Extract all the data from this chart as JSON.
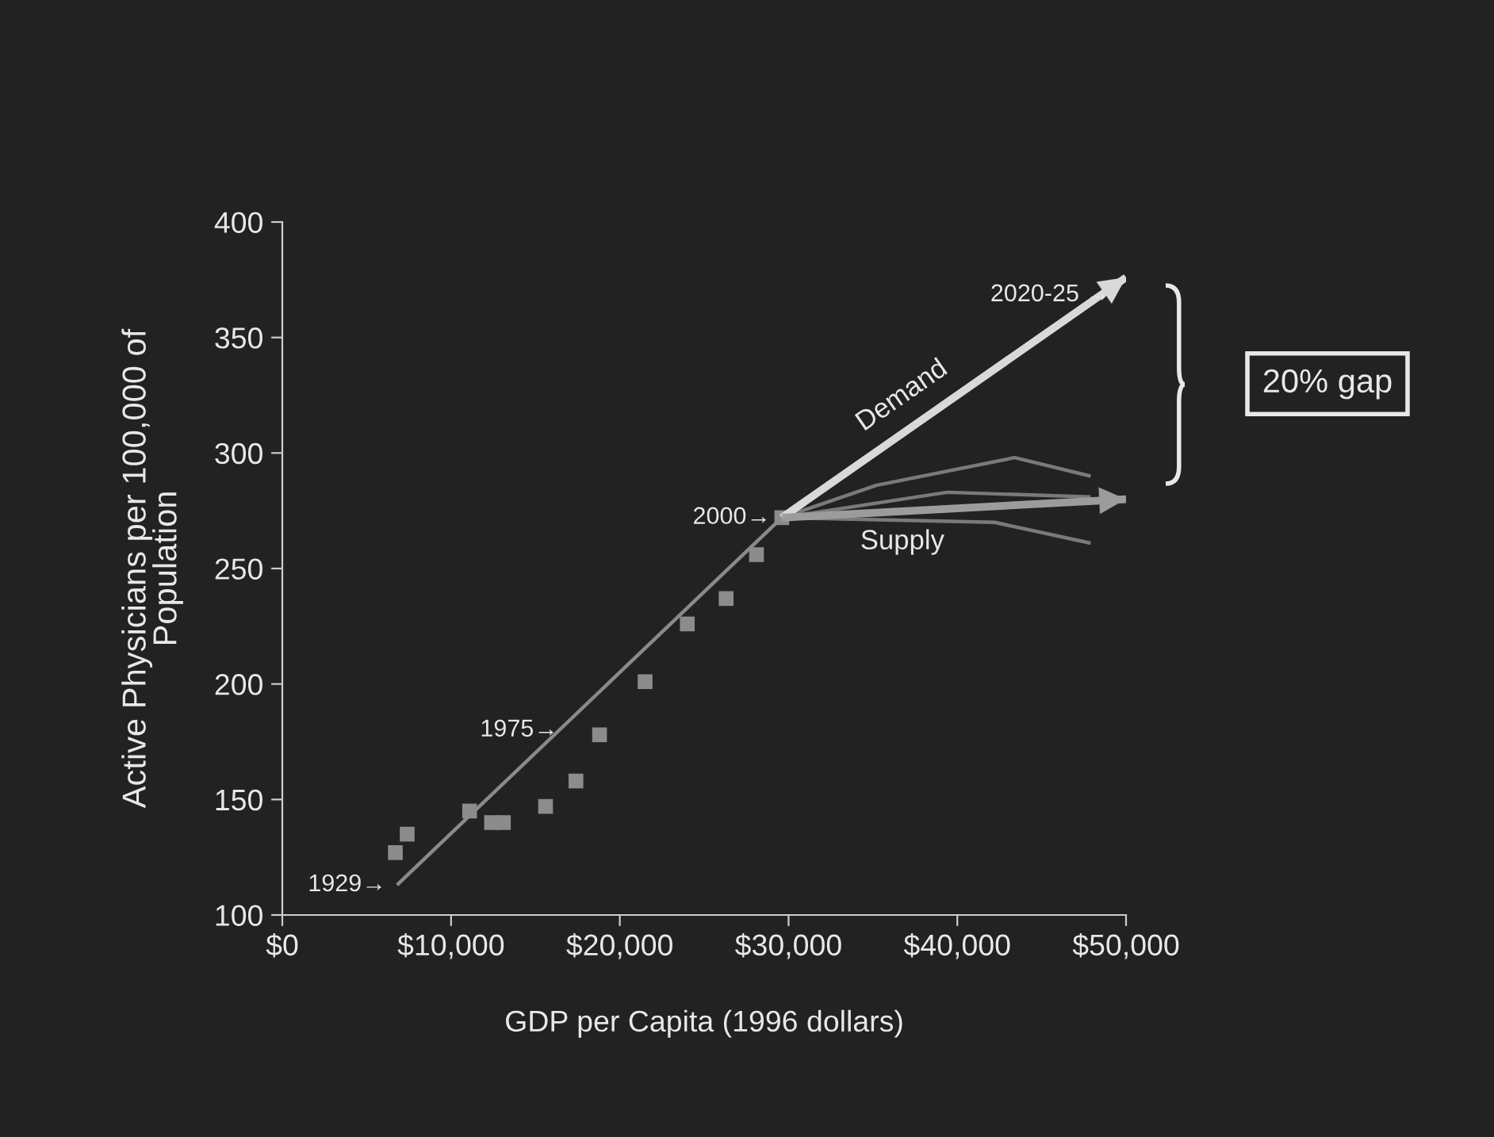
{
  "chart_data": {
    "type": "scatter",
    "xlabel": "GDP per Capita (1996 dollars)",
    "ylabel": "Active Physicians per 100,000 of\nPopulation",
    "xlim": [
      0,
      50000
    ],
    "ylim": [
      100,
      400
    ],
    "xticks": [
      {
        "value": 0,
        "label": "$0"
      },
      {
        "value": 10000,
        "label": "$10,000"
      },
      {
        "value": 20000,
        "label": "$20,000"
      },
      {
        "value": 30000,
        "label": "$30,000"
      },
      {
        "value": 40000,
        "label": "$40,000"
      },
      {
        "value": 50000,
        "label": "$50,000"
      }
    ],
    "yticks": [
      100,
      150,
      200,
      250,
      300,
      350,
      400
    ],
    "grid": false,
    "legend": false,
    "series": [
      {
        "marker": "square",
        "color": "#8c8c8c",
        "x": [
          6700,
          7400,
          11100,
          12400,
          13100,
          15600,
          17400,
          18800,
          21500,
          24000,
          26300,
          28100,
          29600
        ],
        "values": [
          127,
          135,
          145,
          140,
          140,
          147,
          158,
          178,
          201,
          226,
          237,
          256,
          272
        ]
      },
      {
        "type": "line",
        "color": "#8a8a8a",
        "x": [
          6800,
          29600
        ],
        "values": [
          113,
          272
        ]
      },
      {
        "type": "line",
        "color": "#7a7a7a",
        "x": [
          29600,
          35200,
          43400,
          47900
        ],
        "values": [
          272,
          286,
          298,
          290
        ]
      },
      {
        "type": "line",
        "color": "#7a7a7a",
        "x": [
          29600,
          39400,
          47900
        ],
        "values": [
          272,
          283,
          281
        ]
      },
      {
        "type": "line",
        "color": "#7a7a7a",
        "x": [
          29600,
          42200,
          47900
        ],
        "values": [
          272,
          270,
          261
        ]
      },
      {
        "type": "line",
        "name": "Demand",
        "color": "#d9d9d9",
        "x": [
          29600,
          50000
        ],
        "values": [
          272,
          376
        ]
      },
      {
        "type": "line",
        "name": "Supply",
        "color": "#9c9c9c",
        "x": [
          29600,
          50000
        ],
        "values": [
          272,
          280
        ]
      }
    ],
    "annotations": [
      {
        "text": "1929→",
        "x": 6800,
        "y": 113
      },
      {
        "text": "1975→",
        "x": 17000,
        "y": 180
      },
      {
        "text": "2000→",
        "x": 29600,
        "y": 272
      },
      "2020-25 →",
      "20% gap"
    ]
  }
}
